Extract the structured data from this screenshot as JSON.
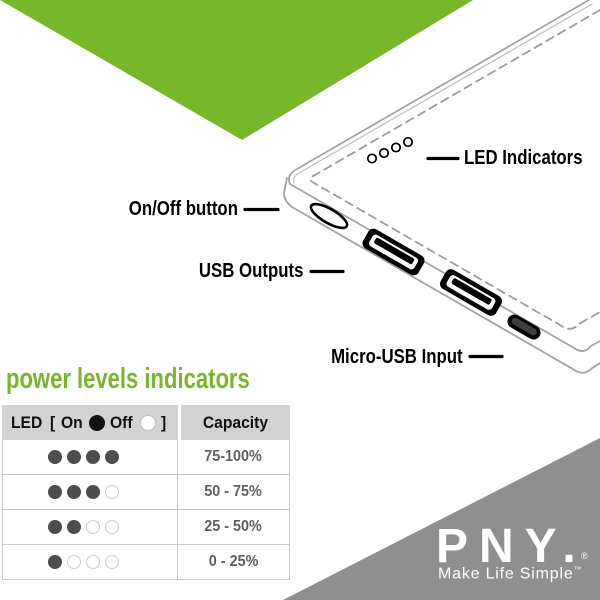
{
  "device_labels": {
    "led": "LED Indicators",
    "power": "On/Off button",
    "usb": "USB Outputs",
    "micro": "Micro-USB Input"
  },
  "section": {
    "title": "power levels indicators"
  },
  "table": {
    "header": {
      "led_prefix": "LED",
      "bracket_open": "[",
      "on_label": "On",
      "off_label": "Off",
      "bracket_close": "]",
      "capacity": "Capacity"
    },
    "dots_per_row": 4,
    "rows": [
      {
        "on": 4,
        "capacity": "75-100%"
      },
      {
        "on": 3,
        "capacity": "50 - 75%"
      },
      {
        "on": 2,
        "capacity": "25 - 50%"
      },
      {
        "on": 1,
        "capacity": "0 - 25%"
      }
    ]
  },
  "brand": {
    "logo": "PNY.",
    "registered": "®",
    "tagline": "Make Life Simple",
    "trademark": "™"
  },
  "colors": {
    "accent_green": "#76b82a",
    "brand_gray": "#8f8f8f",
    "table_header_bg": "#d2d2d2",
    "dot_on": "#4d4d4d",
    "dot_off_border": "#cccccc",
    "device_line_gray": "#a3a3a3"
  }
}
